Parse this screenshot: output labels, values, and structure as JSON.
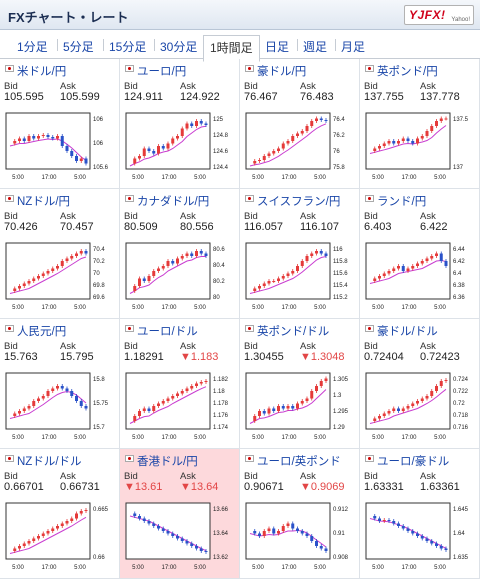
{
  "header": {
    "title": "FXチャート・レート",
    "logo_text": "YJFX!",
    "logo_sub": "Yahoo!"
  },
  "tabs": [
    "1分足",
    "5分足",
    "15分足",
    "30分足",
    "1時間足",
    "日足",
    "週足",
    "月足"
  ],
  "active_tab": "1時間足",
  "labels": {
    "bid": "Bid",
    "ask": "Ask"
  },
  "x_labels": [
    "5:00",
    "17:00",
    "5:00"
  ],
  "colors": {
    "up": "#e53a3a",
    "down": "#2a52c9",
    "ma": "#c93dd0",
    "link": "#1a46a8",
    "highlight": "#fdd9dc"
  },
  "pairs": [
    {
      "name": "米ドル/円",
      "bid": "105.595",
      "ask": "105.599",
      "bid_down": false,
      "ask_down": false,
      "highlight": false,
      "yticks": [
        "106",
        "106",
        "105.6"
      ],
      "path": [
        0.45,
        0.5,
        0.55,
        0.5,
        0.6,
        0.55,
        0.6,
        0.62,
        0.58,
        0.55,
        0.6,
        0.4,
        0.3,
        0.2,
        0.1,
        0.15,
        0.05
      ]
    },
    {
      "name": "ユーロ/円",
      "bid": "124.911",
      "ask": "124.922",
      "bid_down": false,
      "ask_down": false,
      "highlight": false,
      "yticks": [
        "125",
        "124.8",
        "124.6",
        "124.4"
      ],
      "path": [
        0.05,
        0.15,
        0.2,
        0.35,
        0.3,
        0.25,
        0.4,
        0.35,
        0.45,
        0.55,
        0.6,
        0.75,
        0.85,
        0.8,
        0.9,
        0.85,
        0.82
      ]
    },
    {
      "name": "豪ドル/円",
      "bid": "76.467",
      "ask": "76.483",
      "bid_down": false,
      "ask_down": false,
      "highlight": false,
      "yticks": [
        "76.4",
        "76.2",
        "76",
        "75.8"
      ],
      "path": [
        0.05,
        0.1,
        0.12,
        0.2,
        0.25,
        0.3,
        0.35,
        0.45,
        0.5,
        0.6,
        0.65,
        0.7,
        0.8,
        0.9,
        0.95,
        0.92,
        0.9
      ]
    },
    {
      "name": "英ポンド/円",
      "bid": "137.755",
      "ask": "137.778",
      "bid_down": false,
      "ask_down": false,
      "highlight": false,
      "yticks": [
        "137.5",
        "137"
      ],
      "path": [
        0.3,
        0.35,
        0.4,
        0.45,
        0.5,
        0.45,
        0.5,
        0.55,
        0.5,
        0.45,
        0.55,
        0.6,
        0.7,
        0.8,
        0.9,
        0.95,
        0.95
      ]
    },
    {
      "name": "NZドル/円",
      "bid": "70.426",
      "ask": "70.457",
      "bid_down": false,
      "ask_down": false,
      "highlight": false,
      "yticks": [
        "70.4",
        "70.2",
        "70",
        "69.8",
        "69.6"
      ],
      "path": [
        0.1,
        0.15,
        0.2,
        0.25,
        0.3,
        0.35,
        0.4,
        0.45,
        0.5,
        0.55,
        0.6,
        0.7,
        0.75,
        0.8,
        0.85,
        0.9,
        0.85
      ]
    },
    {
      "name": "カナダドル/円",
      "bid": "80.509",
      "ask": "80.556",
      "bid_down": false,
      "ask_down": false,
      "highlight": false,
      "yticks": [
        "80.6",
        "80.4",
        "80.2",
        "80"
      ],
      "path": [
        0.1,
        0.2,
        0.35,
        0.3,
        0.4,
        0.5,
        0.55,
        0.6,
        0.7,
        0.65,
        0.75,
        0.8,
        0.85,
        0.8,
        0.9,
        0.85,
        0.8
      ]
    },
    {
      "name": "スイスフラン/円",
      "bid": "116.057",
      "ask": "116.107",
      "bid_down": false,
      "ask_down": false,
      "highlight": false,
      "yticks": [
        "116",
        "115.8",
        "115.6",
        "115.4",
        "115.2"
      ],
      "path": [
        0.1,
        0.15,
        0.2,
        0.25,
        0.3,
        0.3,
        0.35,
        0.4,
        0.45,
        0.5,
        0.6,
        0.7,
        0.8,
        0.85,
        0.9,
        0.85,
        0.8
      ]
    },
    {
      "name": "ランド/円",
      "bid": "6.403",
      "ask": "6.422",
      "bid_down": false,
      "ask_down": false,
      "highlight": false,
      "yticks": [
        "6.44",
        "6.42",
        "6.4",
        "6.38",
        "6.36"
      ],
      "path": [
        0.3,
        0.35,
        0.4,
        0.45,
        0.5,
        0.55,
        0.6,
        0.5,
        0.55,
        0.6,
        0.65,
        0.7,
        0.75,
        0.8,
        0.85,
        0.7,
        0.6
      ]
    },
    {
      "name": "人民元/円",
      "bid": "15.763",
      "ask": "15.795",
      "bid_down": false,
      "ask_down": false,
      "highlight": false,
      "yticks": [
        "15.8",
        "15.75",
        "15.7"
      ],
      "path": [
        0.2,
        0.25,
        0.3,
        0.35,
        0.4,
        0.5,
        0.55,
        0.6,
        0.7,
        0.75,
        0.8,
        0.75,
        0.7,
        0.6,
        0.5,
        0.4,
        0.35
      ]
    },
    {
      "name": "ユーロ/ドル",
      "bid": "1.18291",
      "ask": "1.183",
      "bid_down": false,
      "ask_down": true,
      "highlight": false,
      "yticks": [
        "1.182",
        "1.18",
        "1.178",
        "1.176",
        "1.174"
      ],
      "path": [
        0.1,
        0.2,
        0.3,
        0.35,
        0.3,
        0.4,
        0.45,
        0.5,
        0.55,
        0.6,
        0.65,
        0.7,
        0.75,
        0.8,
        0.85,
        0.88,
        0.9
      ]
    },
    {
      "name": "英ポンド/ドル",
      "bid": "1.30455",
      "ask": "1.3048",
      "bid_down": false,
      "ask_down": true,
      "highlight": false,
      "yticks": [
        "1.305",
        "1.3",
        "1.295",
        "1.29"
      ],
      "path": [
        0.1,
        0.2,
        0.3,
        0.25,
        0.35,
        0.3,
        0.4,
        0.35,
        0.4,
        0.35,
        0.45,
        0.5,
        0.55,
        0.7,
        0.8,
        0.9,
        0.95
      ]
    },
    {
      "name": "豪ドル/ドル",
      "bid": "0.72404",
      "ask": "0.72423",
      "bid_down": false,
      "ask_down": false,
      "highlight": false,
      "yticks": [
        "0.724",
        "0.722",
        "0.72",
        "0.718",
        "0.716"
      ],
      "path": [
        0.1,
        0.15,
        0.2,
        0.25,
        0.3,
        0.35,
        0.3,
        0.35,
        0.4,
        0.45,
        0.5,
        0.55,
        0.6,
        0.7,
        0.8,
        0.9,
        0.92
      ]
    },
    {
      "name": "NZドル/ドル",
      "bid": "0.66701",
      "ask": "0.66731",
      "bid_down": false,
      "ask_down": false,
      "highlight": false,
      "yticks": [
        "0.665",
        "0.66"
      ],
      "path": [
        0.1,
        0.15,
        0.2,
        0.25,
        0.3,
        0.35,
        0.4,
        0.45,
        0.5,
        0.55,
        0.6,
        0.65,
        0.7,
        0.75,
        0.85,
        0.9,
        0.92
      ]
    },
    {
      "name": "香港ドル/円",
      "bid": "13.61",
      "ask": "13.64",
      "bid_down": true,
      "ask_down": true,
      "highlight": true,
      "yticks": [
        "13.66",
        "13.64",
        "13.62"
      ],
      "path": [
        0.85,
        0.8,
        0.75,
        0.7,
        0.65,
        0.6,
        0.55,
        0.5,
        0.45,
        0.4,
        0.35,
        0.3,
        0.25,
        0.2,
        0.15,
        0.1,
        0.08
      ]
    },
    {
      "name": "ユーロ/英ポンド",
      "bid": "0.90671",
      "ask": "0.9069",
      "bid_down": false,
      "ask_down": true,
      "highlight": false,
      "yticks": [
        "0.912",
        "0.91",
        "0.908"
      ],
      "path": [
        0.5,
        0.45,
        0.4,
        0.5,
        0.55,
        0.45,
        0.5,
        0.6,
        0.65,
        0.55,
        0.5,
        0.45,
        0.4,
        0.3,
        0.2,
        0.15,
        0.1
      ]
    },
    {
      "name": "ユーロ/豪ドル",
      "bid": "1.63331",
      "ask": "1.63361",
      "bid_down": false,
      "ask_down": false,
      "highlight": false,
      "yticks": [
        "1.645",
        "1.64",
        "1.635"
      ],
      "path": [
        0.8,
        0.75,
        0.7,
        0.72,
        0.7,
        0.65,
        0.6,
        0.55,
        0.5,
        0.45,
        0.4,
        0.35,
        0.3,
        0.25,
        0.2,
        0.15,
        0.12
      ]
    }
  ]
}
